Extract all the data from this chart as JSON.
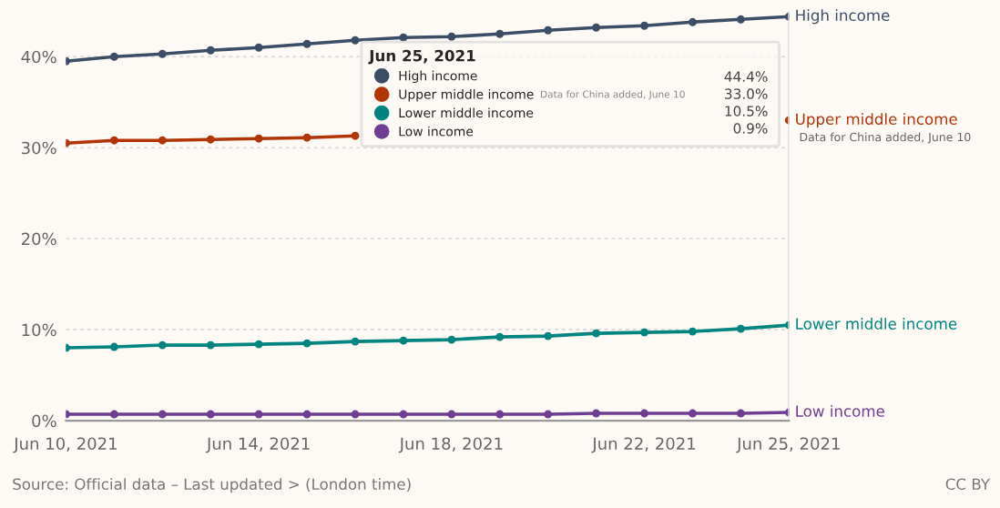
{
  "chart_data": {
    "type": "line",
    "x": [
      "2021-06-10",
      "2021-06-11",
      "2021-06-12",
      "2021-06-13",
      "2021-06-14",
      "2021-06-15",
      "2021-06-16",
      "2021-06-17",
      "2021-06-18",
      "2021-06-19",
      "2021-06-20",
      "2021-06-21",
      "2021-06-22",
      "2021-06-23",
      "2021-06-24",
      "2021-06-25"
    ],
    "series": [
      {
        "name": "High income",
        "color": "#3c4e66",
        "values": [
          39.5,
          40.0,
          40.3,
          40.7,
          41.0,
          41.4,
          41.8,
          42.1,
          42.2,
          42.5,
          42.9,
          43.2,
          43.4,
          43.8,
          44.1,
          44.4
        ]
      },
      {
        "name": "Upper middle income",
        "color": "#b13507",
        "values": [
          30.5,
          30.8,
          30.8,
          30.9,
          31.0,
          31.1,
          31.3,
          null,
          null,
          null,
          null,
          null,
          null,
          null,
          null,
          33.0
        ]
      },
      {
        "name": "Lower middle income",
        "color": "#00847e",
        "values": [
          8.0,
          8.1,
          8.3,
          8.3,
          8.4,
          8.5,
          8.7,
          8.8,
          8.9,
          9.2,
          9.3,
          9.6,
          9.7,
          9.8,
          10.1,
          10.5
        ]
      },
      {
        "name": "Low income",
        "color": "#6d3e91",
        "values": [
          0.7,
          0.7,
          0.7,
          0.7,
          0.7,
          0.7,
          0.7,
          0.7,
          0.7,
          0.7,
          0.7,
          0.8,
          0.8,
          0.8,
          0.8,
          0.9
        ]
      }
    ],
    "xlim": [
      "2021-06-10",
      "2021-06-25"
    ],
    "xticks": [
      {
        "value": "2021-06-10",
        "label": "Jun 10, 2021"
      },
      {
        "value": "2021-06-14",
        "label": "Jun 14, 2021"
      },
      {
        "value": "2021-06-18",
        "label": "Jun 18, 2021"
      },
      {
        "value": "2021-06-22",
        "label": "Jun 22, 2021"
      },
      {
        "value": "2021-06-25",
        "label": "Jun 25, 2021"
      }
    ],
    "ylim": [
      0,
      45
    ],
    "yticks": [
      {
        "value": 0,
        "label": "0%"
      },
      {
        "value": 10,
        "label": "10%"
      },
      {
        "value": 20,
        "label": "20%"
      },
      {
        "value": 30,
        "label": "30%"
      },
      {
        "value": 40,
        "label": "40%"
      }
    ],
    "grid": "y",
    "marker": "circle",
    "line_style": "solid",
    "legend": "top right",
    "legend_title": "Jun 25, 2021",
    "annotations": [
      "Source: Official data – Last updated > (London time)",
      "CC BY",
      "Data for China added, June 10",
      "44.4%",
      "33.0%",
      "10.5%",
      "0.9%",
      {
        "text": "Data for China added, June 10",
        "x": "2021-06-25",
        "y": 33.0
      }
    ]
  }
}
